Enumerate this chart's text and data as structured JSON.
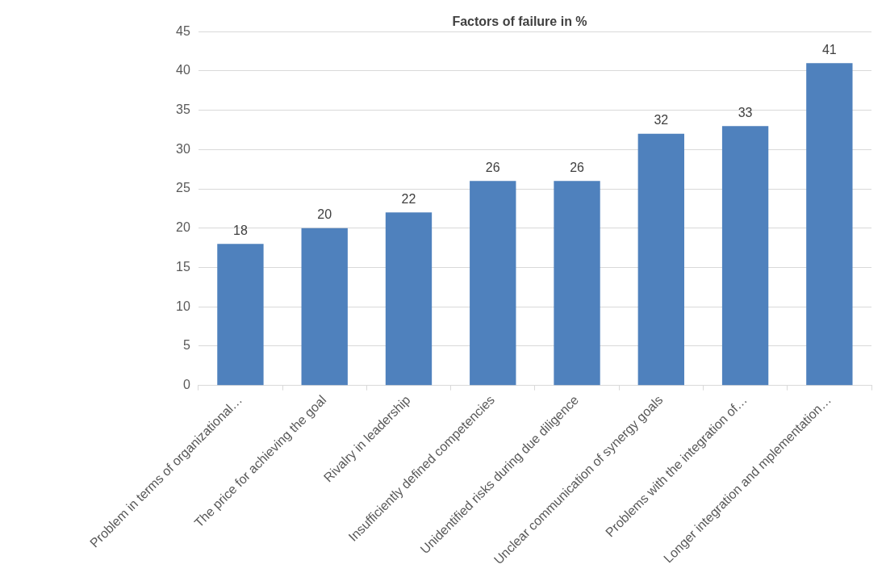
{
  "chart_data": {
    "type": "bar",
    "title": "Factors of failure in %",
    "categories": [
      "Problem in terms of organizational…",
      "The price for achieving the goal",
      "Rivalry in leadership",
      "Insufficiently defined competencies",
      "Unidentified risks during due diligence",
      "Unclear communication of synergy goals",
      "Problems with the integration of…",
      "Longer integration and mplementation…"
    ],
    "values": [
      18,
      20,
      22,
      26,
      26,
      32,
      33,
      41
    ],
    "color": "#4f81bd",
    "ylim": [
      0,
      45
    ],
    "yticks": [
      0,
      5,
      10,
      15,
      20,
      25,
      30,
      35,
      40,
      45
    ],
    "grid": "y",
    "data_labels": true,
    "legend": false
  }
}
